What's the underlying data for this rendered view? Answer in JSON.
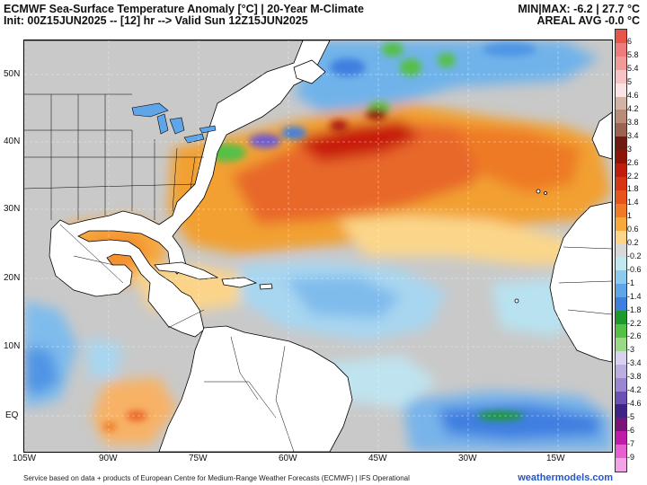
{
  "header": {
    "title": "ECMWF Sea-Surface Temperature Anomaly [°C] | 20-Year M-Climate",
    "init": "Init: 00Z15JUN2025 -- [12] hr --> Valid Sun 12Z15JUN2025",
    "minmax": "MIN|MAX: -6.2 | 27.7 °C",
    "areal_avg": "AREAL AVG -0.0 °C"
  },
  "map": {
    "lat_labels": [
      "50N",
      "40N",
      "30N",
      "20N",
      "10N",
      "EQ"
    ],
    "lon_labels": [
      "105W",
      "90W",
      "75W",
      "60W",
      "45W",
      "30W",
      "15W"
    ],
    "land_color": "#ffffff",
    "neutral_ocean_color": "#c9c9c9"
  },
  "colorbar": {
    "labels": [
      "6",
      "5.8",
      "5.4",
      "5",
      "4.6",
      "4.2",
      "3.8",
      "3.4",
      "3",
      "2.6",
      "2.2",
      "1.8",
      "1.4",
      "1",
      "0.6",
      "0.2",
      "-0.2",
      "-0.6",
      "-1",
      "-1.4",
      "-1.8",
      "-2.2",
      "-2.6",
      "-3",
      "-3.4",
      "-3.8",
      "-4.2",
      "-4.6",
      "-5",
      "-6",
      "-7",
      "-9"
    ],
    "colors": [
      "#e8554a",
      "#ee7c7a",
      "#f19a98",
      "#f6c4c4",
      "#fbe4e4",
      "#d3b3a3",
      "#b98c7a",
      "#9b6350",
      "#6e1b10",
      "#8f1408",
      "#c01e0c",
      "#d83610",
      "#e8551a",
      "#f07a25",
      "#f7a93a",
      "#fcd58a",
      "#d8d8d8",
      "#bfe8ef",
      "#8ccbef",
      "#5ea6e8",
      "#3f7fe0",
      "#1c9a2e",
      "#55c046",
      "#9ada86",
      "#d8d2ee",
      "#bcaee0",
      "#9c86d2",
      "#6c52b4",
      "#3e2488",
      "#7a1478",
      "#c01ca8",
      "#e860d0",
      "#f2a4e6"
    ]
  },
  "footer": {
    "credit": "Service based on data + products of European Centre for Medium-Range Weather Forecasts (ECMWF) | IFS Operational",
    "brand": "weathermodels.com"
  }
}
